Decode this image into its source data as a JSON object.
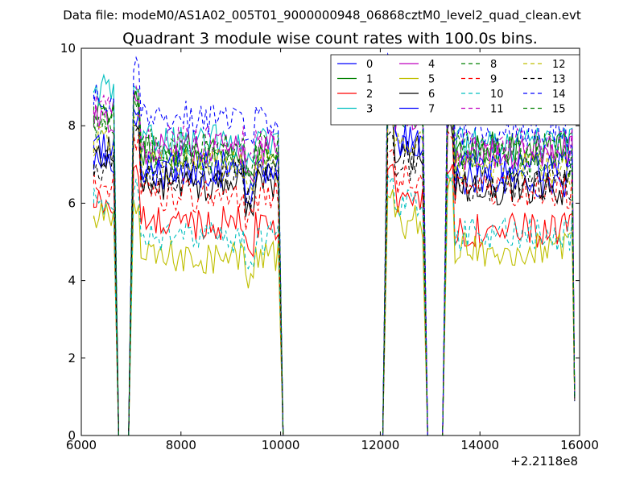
{
  "figure": {
    "suptitle": "Data file: modeM0/AS1A02_005T01_9000000948_06868cztM0_level2_quad_clean.evt"
  },
  "chart_data": {
    "type": "line",
    "title": "Quadrant 3 module wise count rates with 100.0s bins.",
    "xlabel": "",
    "ylabel": "",
    "x_offset_label": "+2.2118e8",
    "xlim": [
      6000,
      16000
    ],
    "ylim": [
      0,
      10
    ],
    "xticks": [
      6000,
      8000,
      10000,
      12000,
      14000,
      16000
    ],
    "xtick_labels": [
      "6000",
      "8000",
      "10000",
      "12000",
      "14000",
      "16000"
    ],
    "yticks": [
      0,
      2,
      4,
      6,
      8,
      10
    ],
    "ytick_labels": [
      "0",
      "2",
      "4",
      "6",
      "8",
      "10"
    ],
    "grid": false,
    "legend_position": "top-right",
    "legend_columns": 4,
    "segments": [
      {
        "x_start": 6250,
        "x_end": 6650
      },
      {
        "x_start": 7050,
        "x_end": 9950
      },
      {
        "x_start": 12150,
        "x_end": 12850
      },
      {
        "x_start": 13350,
        "x_end": 15850
      }
    ],
    "series": [
      {
        "name": "0",
        "color": "#0000ff",
        "dash": "solid",
        "levels": [
          7.1,
          6.8,
          7.6,
          6.6
        ]
      },
      {
        "name": "1",
        "color": "#008000",
        "dash": "solid",
        "levels": [
          8.5,
          7.3,
          8.3,
          7.4
        ]
      },
      {
        "name": "2",
        "color": "#ff0000",
        "dash": "solid",
        "levels": [
          6.0,
          5.5,
          6.1,
          5.3
        ]
      },
      {
        "name": "3",
        "color": "#00bfbf",
        "dash": "solid",
        "levels": [
          8.9,
          7.6,
          8.5,
          7.5
        ]
      },
      {
        "name": "4",
        "color": "#bf00bf",
        "dash": "solid",
        "levels": [
          8.1,
          7.4,
          8.2,
          7.3
        ]
      },
      {
        "name": "5",
        "color": "#bfbf00",
        "dash": "solid",
        "levels": [
          5.6,
          4.6,
          5.5,
          4.8
        ]
      },
      {
        "name": "6",
        "color": "#000000",
        "dash": "solid",
        "levels": [
          7.3,
          6.5,
          7.3,
          6.4
        ]
      },
      {
        "name": "7",
        "color": "#0000ff",
        "dash": "solid",
        "levels": [
          7.4,
          6.9,
          7.6,
          6.9
        ]
      },
      {
        "name": "8",
        "color": "#008000",
        "dash": "dashed",
        "levels": [
          8.0,
          7.2,
          8.1,
          7.1
        ]
      },
      {
        "name": "9",
        "color": "#ff0000",
        "dash": "dashed",
        "levels": [
          6.5,
          6.2,
          6.6,
          6.3
        ]
      },
      {
        "name": "10",
        "color": "#00bfbf",
        "dash": "dashed",
        "levels": [
          6.0,
          5.1,
          5.9,
          5.2
        ]
      },
      {
        "name": "11",
        "color": "#bf00bf",
        "dash": "dashed",
        "levels": [
          8.4,
          7.6,
          8.5,
          7.5
        ]
      },
      {
        "name": "12",
        "color": "#bfbf00",
        "dash": "dashed",
        "levels": [
          7.6,
          7.0,
          7.4,
          6.9
        ]
      },
      {
        "name": "13",
        "color": "#000000",
        "dash": "dashed",
        "levels": [
          7.0,
          6.7,
          7.0,
          6.5
        ]
      },
      {
        "name": "14",
        "color": "#0000ff",
        "dash": "dashed",
        "levels": [
          8.8,
          8.2,
          9.0,
          7.9
        ]
      },
      {
        "name": "15",
        "color": "#008000",
        "dash": "dashed",
        "levels": [
          8.2,
          7.5,
          8.3,
          7.4
        ]
      }
    ]
  }
}
